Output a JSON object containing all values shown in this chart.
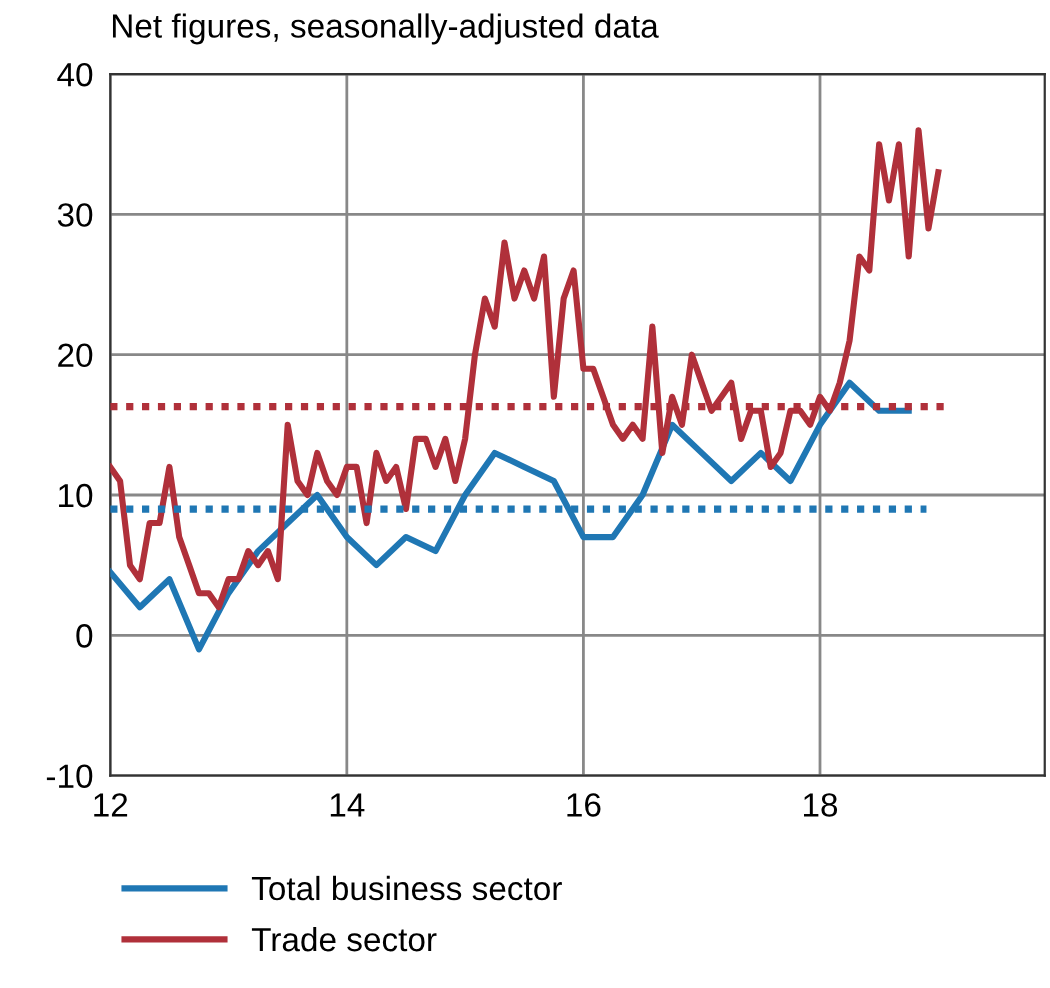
{
  "chart_data": {
    "type": "line",
    "title": "Net figures, seasonally-adjusted data",
    "xlim": [
      12,
      19.9
    ],
    "xticks": [
      12,
      14,
      16,
      18
    ],
    "ylim": [
      -10,
      40
    ],
    "yticks": [
      -10,
      0,
      10,
      20,
      30,
      40
    ],
    "grid": true,
    "legend": "bottom",
    "line_style": "solid",
    "marker": "none",
    "series": [
      {
        "name": "Total business sector",
        "color": "#1f77b4",
        "x": [
          12,
          12.25,
          12.5,
          12.75,
          13,
          13.25,
          13.5,
          13.75,
          14,
          14.25,
          14.5,
          14.75,
          15,
          15.25,
          15.5,
          15.75,
          16,
          16.25,
          16.5,
          16.75,
          17,
          17.25,
          17.5,
          17.75,
          18,
          18.25,
          18.5,
          18.75
        ],
        "values": [
          4.5,
          2,
          4,
          -1,
          3,
          6,
          8,
          10,
          7,
          5,
          7,
          6,
          10,
          13,
          12,
          11,
          7,
          7,
          10,
          15,
          13,
          11,
          13,
          11,
          15,
          18,
          16,
          16
        ]
      },
      {
        "name": "Trade sector",
        "color": "#b0303a",
        "x": [
          12,
          12.083,
          12.167,
          12.25,
          12.333,
          12.417,
          12.5,
          12.583,
          12.667,
          12.75,
          12.833,
          12.917,
          13,
          13.083,
          13.167,
          13.25,
          13.333,
          13.417,
          13.5,
          13.583,
          13.667,
          13.75,
          13.833,
          13.917,
          14,
          14.083,
          14.167,
          14.25,
          14.333,
          14.417,
          14.5,
          14.583,
          14.667,
          14.75,
          14.833,
          14.917,
          15,
          15.083,
          15.167,
          15.25,
          15.333,
          15.417,
          15.5,
          15.583,
          15.667,
          15.75,
          15.833,
          15.917,
          16,
          16.083,
          16.167,
          16.25,
          16.333,
          16.417,
          16.5,
          16.583,
          16.667,
          16.75,
          16.833,
          16.917,
          17,
          17.083,
          17.167,
          17.25,
          17.333,
          17.417,
          17.5,
          17.583,
          17.667,
          17.75,
          17.833,
          17.917,
          18,
          18.083,
          18.167,
          18.25,
          18.333,
          18.417,
          18.5,
          18.583,
          18.667,
          18.75,
          18.833,
          18.917,
          19
        ],
        "values": [
          12,
          11,
          5,
          4,
          8,
          8,
          12,
          7,
          5,
          3,
          3,
          2,
          4,
          4,
          6,
          5,
          6,
          4,
          15,
          11,
          10,
          13,
          11,
          10,
          12,
          12,
          8,
          13,
          11,
          12,
          9,
          14,
          14,
          12,
          14,
          11,
          14,
          20,
          24,
          22,
          28,
          24,
          26,
          24,
          27,
          17,
          24,
          26,
          19,
          19,
          17,
          15,
          14,
          15,
          14,
          22,
          13,
          17,
          15,
          20,
          18,
          16,
          17,
          18,
          14,
          16,
          16,
          12,
          13,
          16,
          16,
          15,
          17,
          16,
          18,
          21,
          27,
          26,
          35,
          31,
          35,
          27,
          36,
          29,
          33
        ]
      },
      {
        "color": "#1f77b4",
        "line_style": "dotted",
        "x": [
          12,
          18.9
        ],
        "values": [
          9,
          9
        ]
      },
      {
        "color": "#b0303a",
        "line_style": "dotted",
        "x": [
          12,
          19.05
        ],
        "values": [
          16.3,
          16.3
        ]
      }
    ]
  }
}
